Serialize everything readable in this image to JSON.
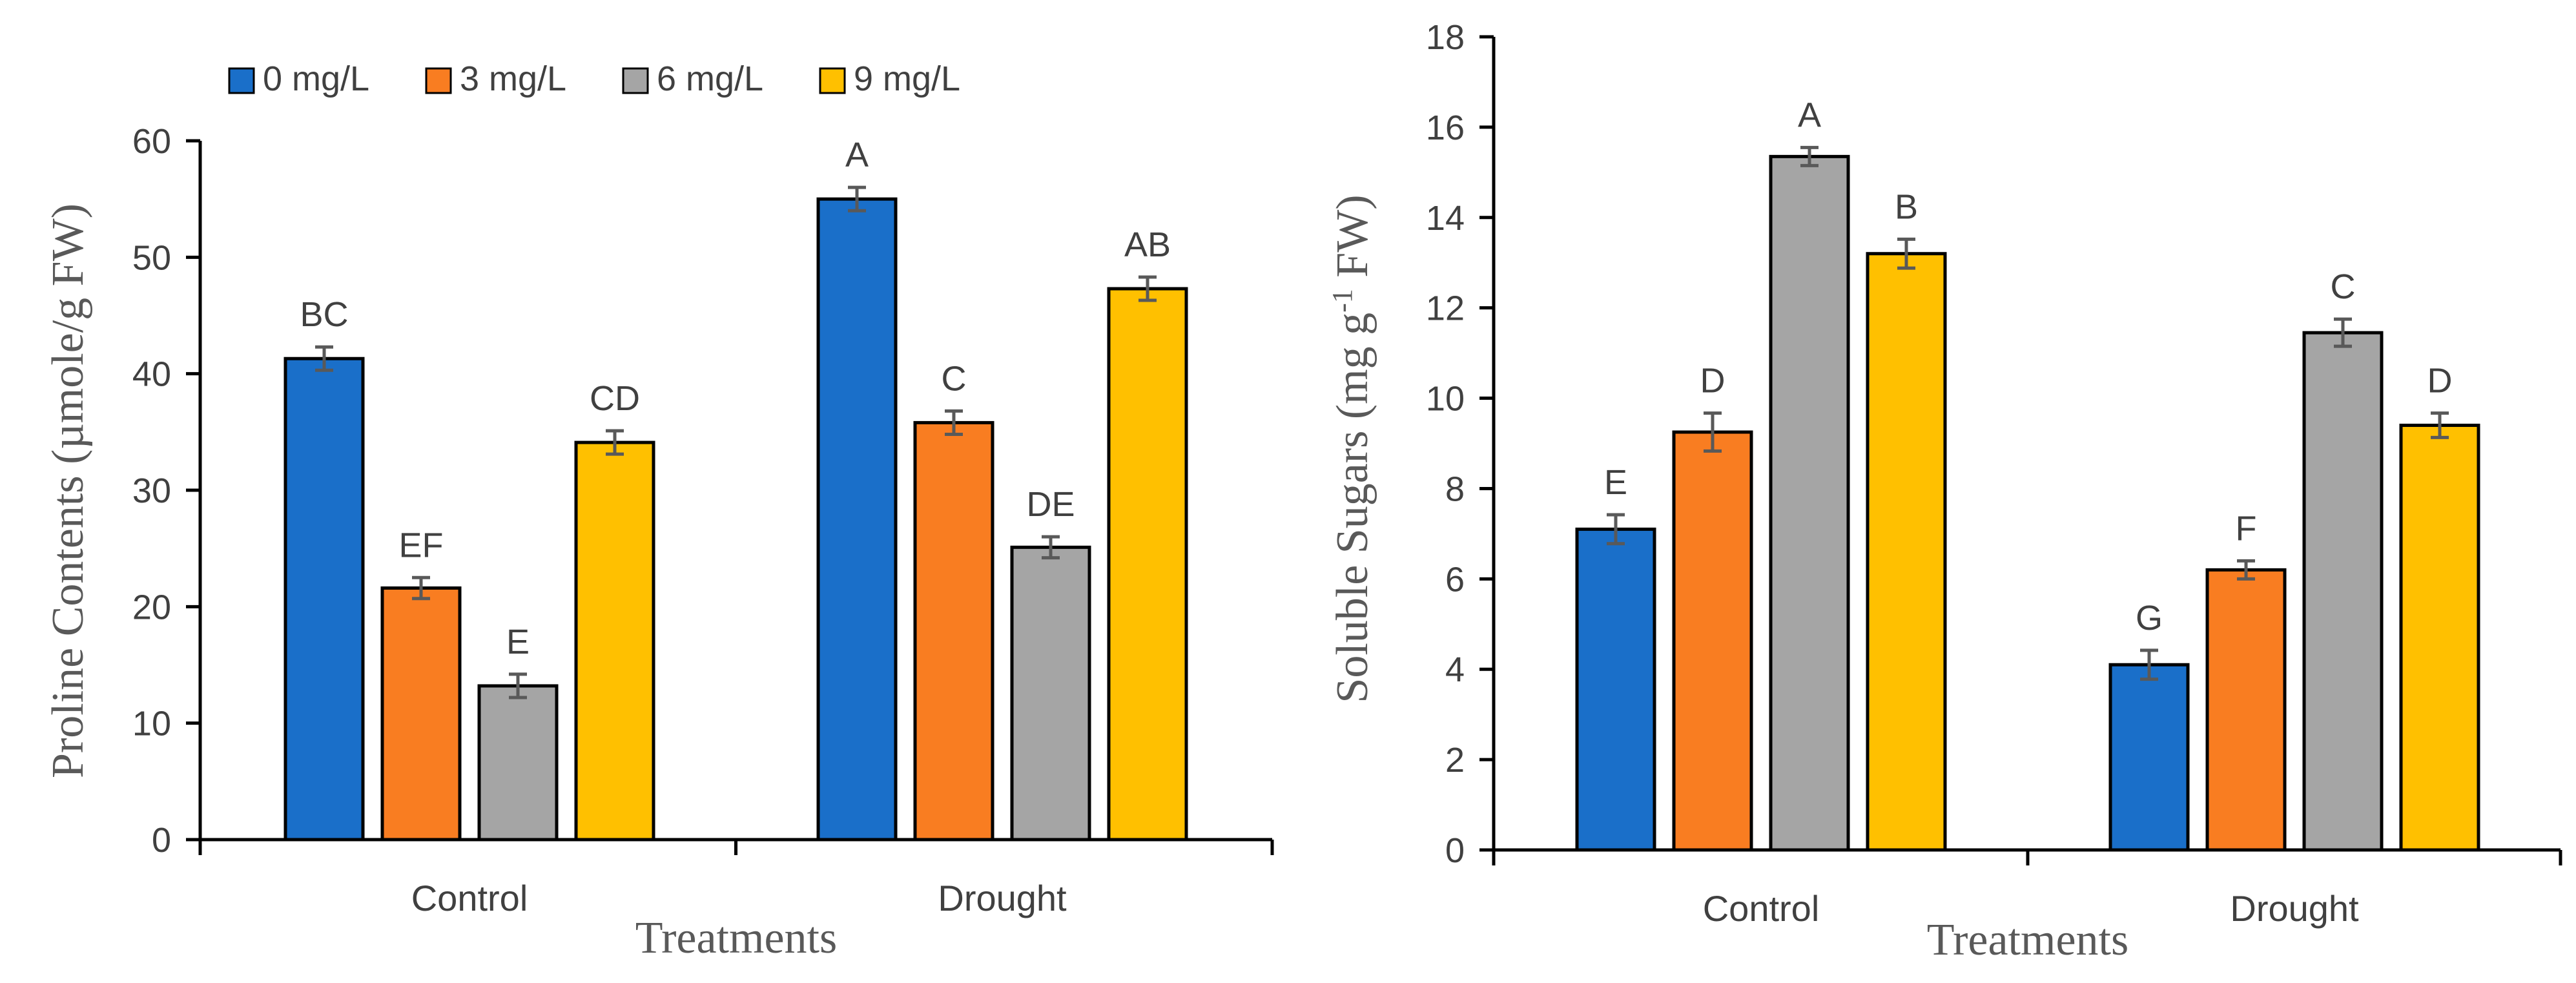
{
  "legend": {
    "position": "top-left",
    "items": [
      {
        "label": "0 mg/L",
        "color": "#1a6fc9"
      },
      {
        "label": "3 mg/L",
        "color": "#f97d21"
      },
      {
        "label": "6 mg/L",
        "color": "#a5a5a5"
      },
      {
        "label": "9 mg/L",
        "color": "#ffc000"
      }
    ]
  },
  "chart_data": [
    {
      "type": "bar",
      "title": "",
      "xlabel": "Treatments",
      "ylabel": "Proline Contents (µmole/g FW)",
      "ylim": [
        0,
        60
      ],
      "yticks": [
        0,
        10,
        20,
        30,
        40,
        50,
        60
      ],
      "grid": false,
      "categories": [
        "Control",
        "Drought"
      ],
      "series": [
        {
          "name": "0 mg/L",
          "values": [
            41.3,
            55.0
          ],
          "errors": [
            1.0,
            1.0
          ],
          "labels": [
            "BC",
            "A"
          ]
        },
        {
          "name": "3 mg/L",
          "values": [
            21.6,
            35.8
          ],
          "errors": [
            0.9,
            1.0
          ],
          "labels": [
            "EF",
            "C"
          ]
        },
        {
          "name": "6 mg/L",
          "values": [
            13.2,
            25.1
          ],
          "errors": [
            1.0,
            0.9
          ],
          "labels": [
            "E",
            "DE"
          ]
        },
        {
          "name": "9 mg/L",
          "values": [
            34.1,
            47.3
          ],
          "errors": [
            1.0,
            1.0
          ],
          "labels": [
            "CD",
            "AB"
          ]
        }
      ]
    },
    {
      "type": "bar",
      "title": "",
      "xlabel": "Treatments",
      "ylabel": "Soluble Sugars (mg g-1 FW)",
      "ylabel_main": "Soluble Sugars (mg g",
      "ylabel_sup": "-1",
      "ylabel_tail": " FW)",
      "ylim": [
        0,
        18
      ],
      "yticks": [
        0,
        2,
        4,
        6,
        8,
        10,
        12,
        14,
        16,
        18
      ],
      "grid": false,
      "categories": [
        "Control",
        "Drought"
      ],
      "series": [
        {
          "name": "0 mg/L",
          "values": [
            7.1,
            4.1
          ],
          "errors": [
            0.32,
            0.32
          ],
          "labels": [
            "E",
            "G"
          ]
        },
        {
          "name": "3 mg/L",
          "values": [
            9.25,
            6.2
          ],
          "errors": [
            0.42,
            0.2
          ],
          "labels": [
            "D",
            "F"
          ]
        },
        {
          "name": "6 mg/L",
          "values": [
            15.35,
            11.45
          ],
          "errors": [
            0.2,
            0.3
          ],
          "labels": [
            "A",
            "C"
          ]
        },
        {
          "name": "9 mg/L",
          "values": [
            13.2,
            9.4
          ],
          "errors": [
            0.32,
            0.27
          ],
          "labels": [
            "B",
            "D"
          ]
        }
      ]
    }
  ]
}
